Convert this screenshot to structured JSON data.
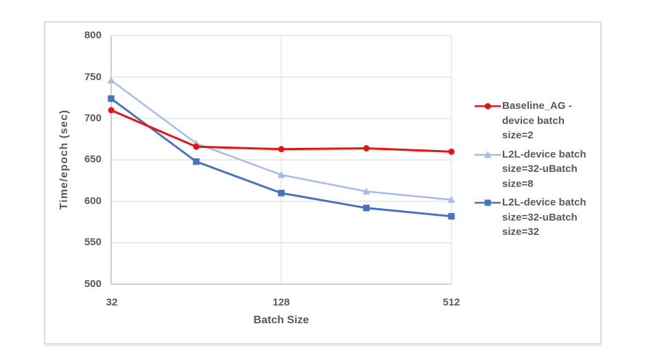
{
  "chart_data": {
    "type": "line",
    "title": "",
    "xlabel": "Batch Size",
    "ylabel": "Time/epoch (sec)",
    "x_scale": "log2",
    "x": [
      32,
      64,
      128,
      256,
      512
    ],
    "x_tick_values": [
      32,
      128,
      512
    ],
    "x_tick_labels": [
      "32",
      "128",
      "512"
    ],
    "y_ticks": [
      "800",
      "750",
      "700",
      "650",
      "600",
      "550",
      "500"
    ],
    "y_tick_values": [
      800,
      750,
      700,
      650,
      600,
      550,
      500
    ],
    "ylim": [
      500,
      800
    ],
    "grid": true,
    "legend_position": "right",
    "series": [
      {
        "name": "L2L-device batch size=32-uBatch size=8",
        "color": "#A6BCE8",
        "marker": "triangle",
        "line_width": 2.5,
        "values": [
          746,
          670,
          632,
          612,
          602
        ]
      },
      {
        "name": "L2L-device batch size=32-uBatch size=32",
        "color": "#4472C4",
        "marker": "square",
        "line_width": 3,
        "values": [
          724,
          648,
          610,
          592,
          582
        ]
      },
      {
        "name": "Baseline_AG - device batch size=2",
        "color": "#F20D0D",
        "marker": "circle",
        "line_width": 3,
        "values": [
          710,
          666,
          663,
          664,
          660
        ]
      }
    ]
  },
  "legend": {
    "items": [
      {
        "text": "Baseline_AG -\ndevice batch\nsize=2"
      },
      {
        "text": "L2L-device batch\nsize=32-uBatch\nsize=8"
      },
      {
        "text": "L2L-device batch\nsize=32-uBatch\nsize=32"
      }
    ]
  },
  "colors": {
    "grid": "#D9D9D9",
    "axis": "#BFBFBF",
    "text": "#595959",
    "frame_border": "#DCDCDC",
    "series_red": "#F20D0D",
    "series_light_blue": "#A6BCE8",
    "series_dark_blue": "#4472C4"
  }
}
